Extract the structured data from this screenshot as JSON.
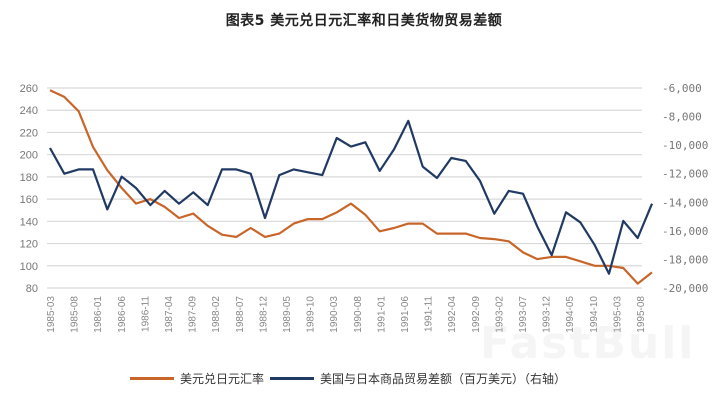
{
  "title": "图表5 美元兑日元汇率和日美货物贸易差额",
  "watermark": "FastBull",
  "colors": {
    "exchange_rate": "#C8662A",
    "trade_balance": "#213A63",
    "grid": "#D9D9D9"
  },
  "legend": [
    {
      "label": "美元兑日元汇率",
      "color": "#C8662A"
    },
    {
      "label": "美国与日本商品贸易差额（百万美元）（右轴）",
      "color": "#213A63"
    }
  ],
  "chart_data": {
    "type": "line",
    "title": "图表5 美元兑日元汇率和日美货物贸易差额",
    "xlabel": "",
    "ylabel": "",
    "y2label": "美国与日本商品贸易差额（百万美元）",
    "ylim": [
      80,
      260
    ],
    "y2lim": [
      -20000,
      -6000
    ],
    "grid": true,
    "legend_position": "bottom",
    "x_tick_labels": [
      "1985-03",
      "1985-08",
      "1986-01",
      "1986-06",
      "1986-11",
      "1987-04",
      "1987-09",
      "1988-02",
      "1988-07",
      "1988-12",
      "1989-05",
      "1989-10",
      "1990-03",
      "1990-08",
      "1991-01",
      "1991-06",
      "1991-11",
      "1992-04",
      "1992-09",
      "1993-02",
      "1993-07",
      "1993-12",
      "1994-05",
      "1994-10",
      "1995-03",
      "1995-08"
    ],
    "y_ticks": [
      "260",
      "240",
      "220",
      "200",
      "180",
      "160",
      "140",
      "120",
      "100",
      "80"
    ],
    "y2_ticks": [
      "-6,000",
      "-8,000",
      "-10,000",
      "-12,000",
      "-14,000",
      "-16,000",
      "-18,000",
      "-20,000"
    ],
    "x": [
      "1985-03",
      "1985-06",
      "1985-09",
      "1985-12",
      "1986-03",
      "1986-06",
      "1986-09",
      "1986-12",
      "1987-03",
      "1987-06",
      "1987-09",
      "1987-12",
      "1988-03",
      "1988-06",
      "1988-09",
      "1988-12",
      "1989-03",
      "1989-06",
      "1989-09",
      "1989-12",
      "1990-03",
      "1990-06",
      "1990-09",
      "1990-12",
      "1991-03",
      "1991-06",
      "1991-09",
      "1991-12",
      "1992-03",
      "1992-06",
      "1992-09",
      "1992-12",
      "1993-03",
      "1993-06",
      "1993-09",
      "1993-12",
      "1994-03",
      "1994-06",
      "1994-09",
      "1994-12",
      "1995-03",
      "1995-06",
      "1995-09"
    ],
    "series": [
      {
        "name": "美元兑日元汇率",
        "axis": "left",
        "values": [
          258,
          252,
          239,
          207,
          186,
          170,
          156,
          160,
          153,
          143,
          147,
          136,
          128,
          126,
          134,
          126,
          129,
          138,
          142,
          142,
          148,
          156,
          146,
          131,
          134,
          138,
          138,
          129,
          129,
          129,
          125,
          124,
          122,
          112,
          106,
          108,
          108,
          104,
          100,
          100,
          98,
          84,
          94
        ]
      },
      {
        "name": "美国与日本商品贸易差额（百万美元）（右轴）",
        "axis": "right",
        "values": [
          -10200,
          -12000,
          -11700,
          -11700,
          -14500,
          -12200,
          -13000,
          -14200,
          -13200,
          -14100,
          -13300,
          -14200,
          -11700,
          -11700,
          -12000,
          -15100,
          -12100,
          -11700,
          -11900,
          -12100,
          -9500,
          -10100,
          -9800,
          -11800,
          -10300,
          -8300,
          -11500,
          -12300,
          -10900,
          -11100,
          -12500,
          -14800,
          -13200,
          -13400,
          -15700,
          -17700,
          -14700,
          -15400,
          -17000,
          -19000,
          -15300,
          -16500,
          -14100
        ]
      }
    ]
  }
}
